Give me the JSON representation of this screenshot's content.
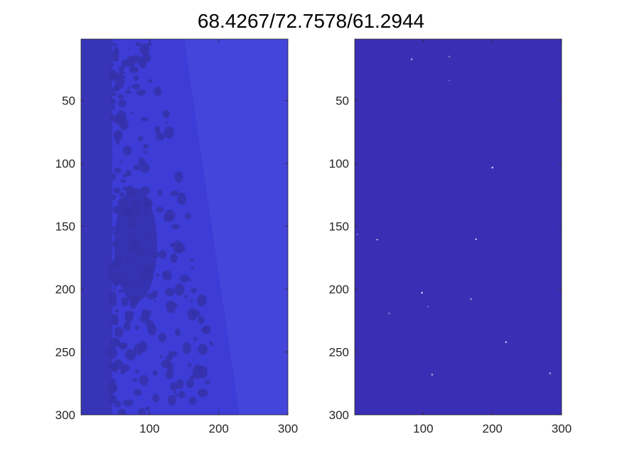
{
  "chart_data": {
    "type": "heatmap",
    "title": "68.4267/72.7578/61.2944",
    "panels": [
      {
        "name": "left-image",
        "xlim": [
          1,
          300
        ],
        "ylim": [
          1,
          300
        ],
        "xticks": [
          100,
          200,
          300
        ],
        "yticks": [
          50,
          100,
          150,
          200,
          250,
          300
        ],
        "y_direction": "reverse",
        "grid": false,
        "colors": {
          "base": "#3d3cd6",
          "dark": "#3531aa",
          "strip": "#3834b8",
          "light": "#4b4ce0"
        }
      },
      {
        "name": "right-image",
        "xlim": [
          1,
          300
        ],
        "ylim": [
          1,
          300
        ],
        "xticks": [
          100,
          200,
          300
        ],
        "yticks": [
          50,
          100,
          150,
          200,
          250,
          300
        ],
        "y_direction": "reverse",
        "grid": false,
        "colors": {
          "base": "#3a2fb4",
          "speck": "#ffffff"
        }
      }
    ]
  }
}
